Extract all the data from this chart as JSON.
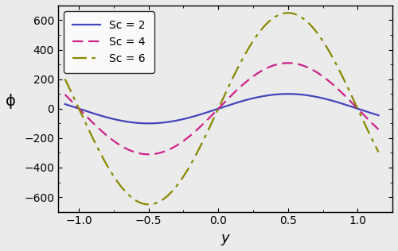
{
  "xlabel": "y",
  "ylabel": "ϕ",
  "xlim": [
    -1.15,
    1.25
  ],
  "ylim": [
    -700,
    700
  ],
  "yticks": [
    -600,
    -400,
    -200,
    0,
    200,
    400,
    600
  ],
  "xticks": [
    -1.0,
    -0.5,
    0.0,
    0.5,
    1.0
  ],
  "legend_labels": [
    "Sc = 2",
    "Sc = 4",
    "Sc = 6"
  ],
  "line_colors": [
    "#4444bb",
    "#cc2288",
    "#888800"
  ],
  "amplitudes": [
    100,
    310,
    650
  ],
  "background_color": "#ebebeb",
  "figsize": [
    5.0,
    3.16
  ],
  "dpi": 100
}
